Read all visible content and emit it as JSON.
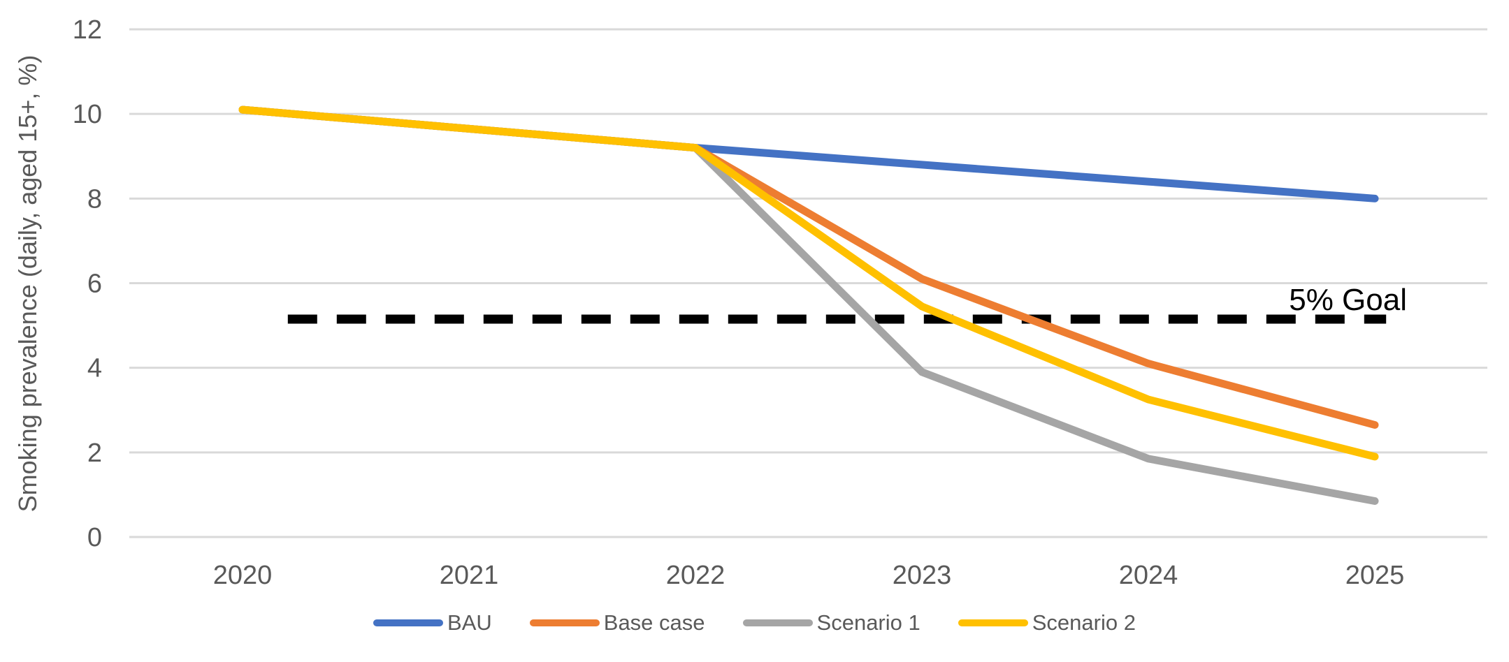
{
  "chart_data": {
    "type": "line",
    "title": "",
    "xlabel": "",
    "ylabel": "Smoking prevalence (daily, aged 15+, %)",
    "categories": [
      "2020",
      "2021",
      "2022",
      "2023",
      "2024",
      "2025"
    ],
    "y_ticks": [
      0,
      2,
      4,
      6,
      8,
      10,
      12
    ],
    "ylim": [
      0,
      12
    ],
    "grid": "horizontal-only",
    "legend_position": "bottom-center",
    "series": [
      {
        "name": "BAU",
        "color": "#4472C4",
        "values": [
          10.1,
          9.65,
          9.2,
          8.8,
          8.4,
          8.0
        ]
      },
      {
        "name": "Base case",
        "color": "#ED7D31",
        "values": [
          10.1,
          9.65,
          9.2,
          6.1,
          4.1,
          2.65
        ]
      },
      {
        "name": "Scenario 1",
        "color": "#A5A5A5",
        "values": [
          10.1,
          9.65,
          9.2,
          3.9,
          1.85,
          0.85
        ]
      },
      {
        "name": "Scenario 2",
        "color": "#FFC000",
        "values": [
          10.1,
          9.65,
          9.2,
          5.45,
          3.25,
          1.9
        ]
      }
    ],
    "goal_line": {
      "label": "5% Goal",
      "value": 5.15,
      "color": "#000000",
      "style": "dashed",
      "x_start_year": 2020.2,
      "x_end_year": 2025.05
    }
  },
  "axes": {
    "tick_label_color": "#595959",
    "grid_color": "#D9D9D9",
    "background": "#FFFFFF"
  }
}
